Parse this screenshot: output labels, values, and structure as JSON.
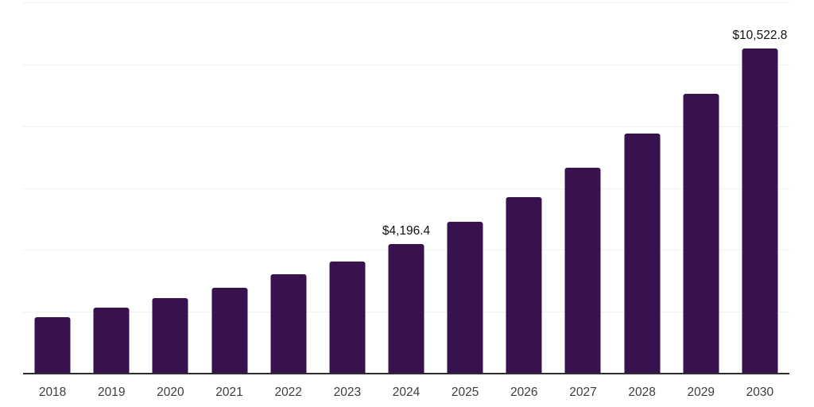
{
  "chart_data": {
    "type": "bar",
    "title": "",
    "xlabel": "",
    "ylabel": "",
    "categories": [
      "2018",
      "2019",
      "2020",
      "2021",
      "2022",
      "2023",
      "2024",
      "2025",
      "2026",
      "2027",
      "2028",
      "2029",
      "2030"
    ],
    "values": [
      1830,
      2130,
      2440,
      2780,
      3210,
      3630,
      4196.4,
      4910,
      5710,
      6660,
      7760,
      9050,
      10522.8
    ],
    "data_labels": [
      {
        "category": "2024",
        "text": "$4,196.4"
      },
      {
        "category": "2030",
        "text": "$10,522.8"
      }
    ],
    "ylim": [
      0,
      12000
    ],
    "gridline_step": 2000,
    "grid": true,
    "legend": false,
    "colors": {
      "bar": "#38124e",
      "axis_line": "#2e2e2e",
      "tick_label": "#3d3d3d",
      "value_label": "#111111",
      "gridline": "#f1f1f3",
      "background": "#ffffff"
    }
  }
}
